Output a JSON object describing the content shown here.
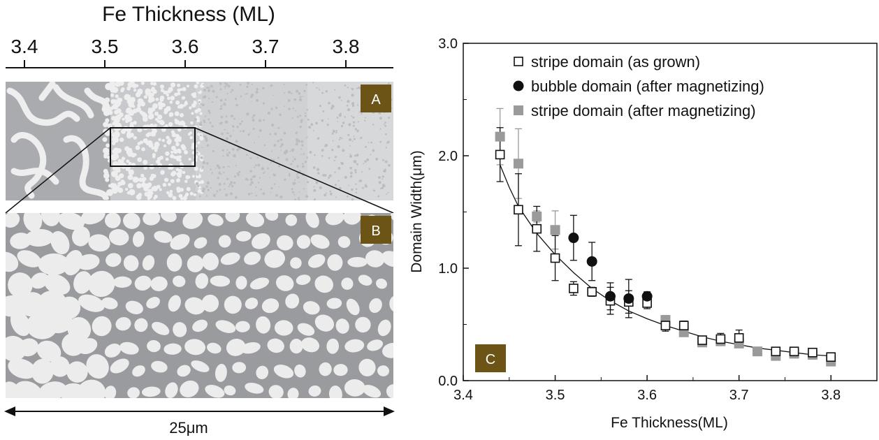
{
  "left_panel": {
    "top_axis_title": "Fe Thickness (ML)",
    "top_axis_ticks": [
      "3.4",
      "3.5",
      "3.6",
      "3.7",
      "3.8"
    ],
    "panel_a_label": "A",
    "panel_b_label": "B",
    "scale_label": "25μm",
    "badge_color": "#6b5415"
  },
  "chart_data": {
    "type": "scatter",
    "panel_label": "C",
    "xlabel": "Fe Thickness(ML)",
    "ylabel": "Domain Width(μm)",
    "xlim": [
      3.4,
      3.85
    ],
    "ylim": [
      0.0,
      3.0
    ],
    "xticks": [
      "3.4",
      "3.5",
      "3.6",
      "3.7",
      "3.8"
    ],
    "yticks": [
      "0.0",
      "1.0",
      "2.0",
      "3.0"
    ],
    "legend_position": "top-right",
    "series": [
      {
        "name": "stripe domain (as grown)",
        "marker": "open-square",
        "color": "#111111",
        "points": [
          {
            "x": 3.44,
            "y": 2.01,
            "err": 0.24
          },
          {
            "x": 3.46,
            "y": 1.52,
            "err": 0.32
          },
          {
            "x": 3.48,
            "y": 1.35,
            "err": 0.2
          },
          {
            "x": 3.5,
            "y": 1.09,
            "err": 0.2
          },
          {
            "x": 3.52,
            "y": 0.82,
            "err": 0.06
          },
          {
            "x": 3.54,
            "y": 0.79,
            "err": 0.04
          },
          {
            "x": 3.56,
            "y": 0.71,
            "err": 0.12
          },
          {
            "x": 3.58,
            "y": 0.7,
            "err": 0.1
          },
          {
            "x": 3.6,
            "y": 0.69,
            "err": 0.05
          },
          {
            "x": 3.62,
            "y": 0.49,
            "err": 0.05
          },
          {
            "x": 3.64,
            "y": 0.49,
            "err": 0.04
          },
          {
            "x": 3.66,
            "y": 0.36,
            "err": 0.03
          },
          {
            "x": 3.68,
            "y": 0.37,
            "err": 0.05
          },
          {
            "x": 3.7,
            "y": 0.38,
            "err": 0.07
          },
          {
            "x": 3.74,
            "y": 0.26,
            "err": 0.02
          },
          {
            "x": 3.76,
            "y": 0.26,
            "err": 0.02
          },
          {
            "x": 3.78,
            "y": 0.25,
            "err": 0.02
          },
          {
            "x": 3.8,
            "y": 0.21,
            "err": 0.02
          }
        ]
      },
      {
        "name": "bubble domain (after magnetizing)",
        "marker": "filled-circle",
        "color": "#111111",
        "points": [
          {
            "x": 3.52,
            "y": 1.27,
            "err": 0.2
          },
          {
            "x": 3.54,
            "y": 1.06,
            "err": 0.17
          },
          {
            "x": 3.56,
            "y": 0.75,
            "err": 0.12
          },
          {
            "x": 3.58,
            "y": 0.73,
            "err": 0.17
          },
          {
            "x": 3.6,
            "y": 0.75,
            "err": 0.04
          }
        ]
      },
      {
        "name": "stripe domain (after magnetizing)",
        "marker": "filled-square",
        "color": "#9a9a9a",
        "points": [
          {
            "x": 3.44,
            "y": 2.17,
            "err": 0.25
          },
          {
            "x": 3.46,
            "y": 1.93,
            "err": 0.31
          },
          {
            "x": 3.48,
            "y": 1.46,
            "err": 0.05
          },
          {
            "x": 3.5,
            "y": 1.34,
            "err": 0.17
          },
          {
            "x": 3.62,
            "y": 0.54,
            "err": 0.04
          },
          {
            "x": 3.64,
            "y": 0.43,
            "err": 0.03
          },
          {
            "x": 3.66,
            "y": 0.34,
            "err": 0.03
          },
          {
            "x": 3.68,
            "y": 0.35,
            "err": 0.03
          },
          {
            "x": 3.7,
            "y": 0.33,
            "err": 0.03
          },
          {
            "x": 3.72,
            "y": 0.26,
            "err": 0.02
          },
          {
            "x": 3.74,
            "y": 0.22,
            "err": 0.02
          },
          {
            "x": 3.76,
            "y": 0.24,
            "err": 0.02
          },
          {
            "x": 3.78,
            "y": 0.23,
            "err": 0.02
          },
          {
            "x": 3.8,
            "y": 0.17,
            "err": 0.02
          }
        ]
      }
    ],
    "fit_curve": [
      {
        "x": 3.44,
        "y": 1.92
      },
      {
        "x": 3.45,
        "y": 1.72
      },
      {
        "x": 3.46,
        "y": 1.55
      },
      {
        "x": 3.48,
        "y": 1.31
      },
      {
        "x": 3.5,
        "y": 1.12
      },
      {
        "x": 3.52,
        "y": 0.96
      },
      {
        "x": 3.54,
        "y": 0.82
      },
      {
        "x": 3.56,
        "y": 0.71
      },
      {
        "x": 3.58,
        "y": 0.62
      },
      {
        "x": 3.6,
        "y": 0.55
      },
      {
        "x": 3.62,
        "y": 0.49
      },
      {
        "x": 3.64,
        "y": 0.44
      },
      {
        "x": 3.66,
        "y": 0.39
      },
      {
        "x": 3.68,
        "y": 0.35
      },
      {
        "x": 3.7,
        "y": 0.32
      },
      {
        "x": 3.72,
        "y": 0.29
      },
      {
        "x": 3.74,
        "y": 0.27
      },
      {
        "x": 3.76,
        "y": 0.25
      },
      {
        "x": 3.78,
        "y": 0.23
      },
      {
        "x": 3.8,
        "y": 0.22
      }
    ]
  }
}
